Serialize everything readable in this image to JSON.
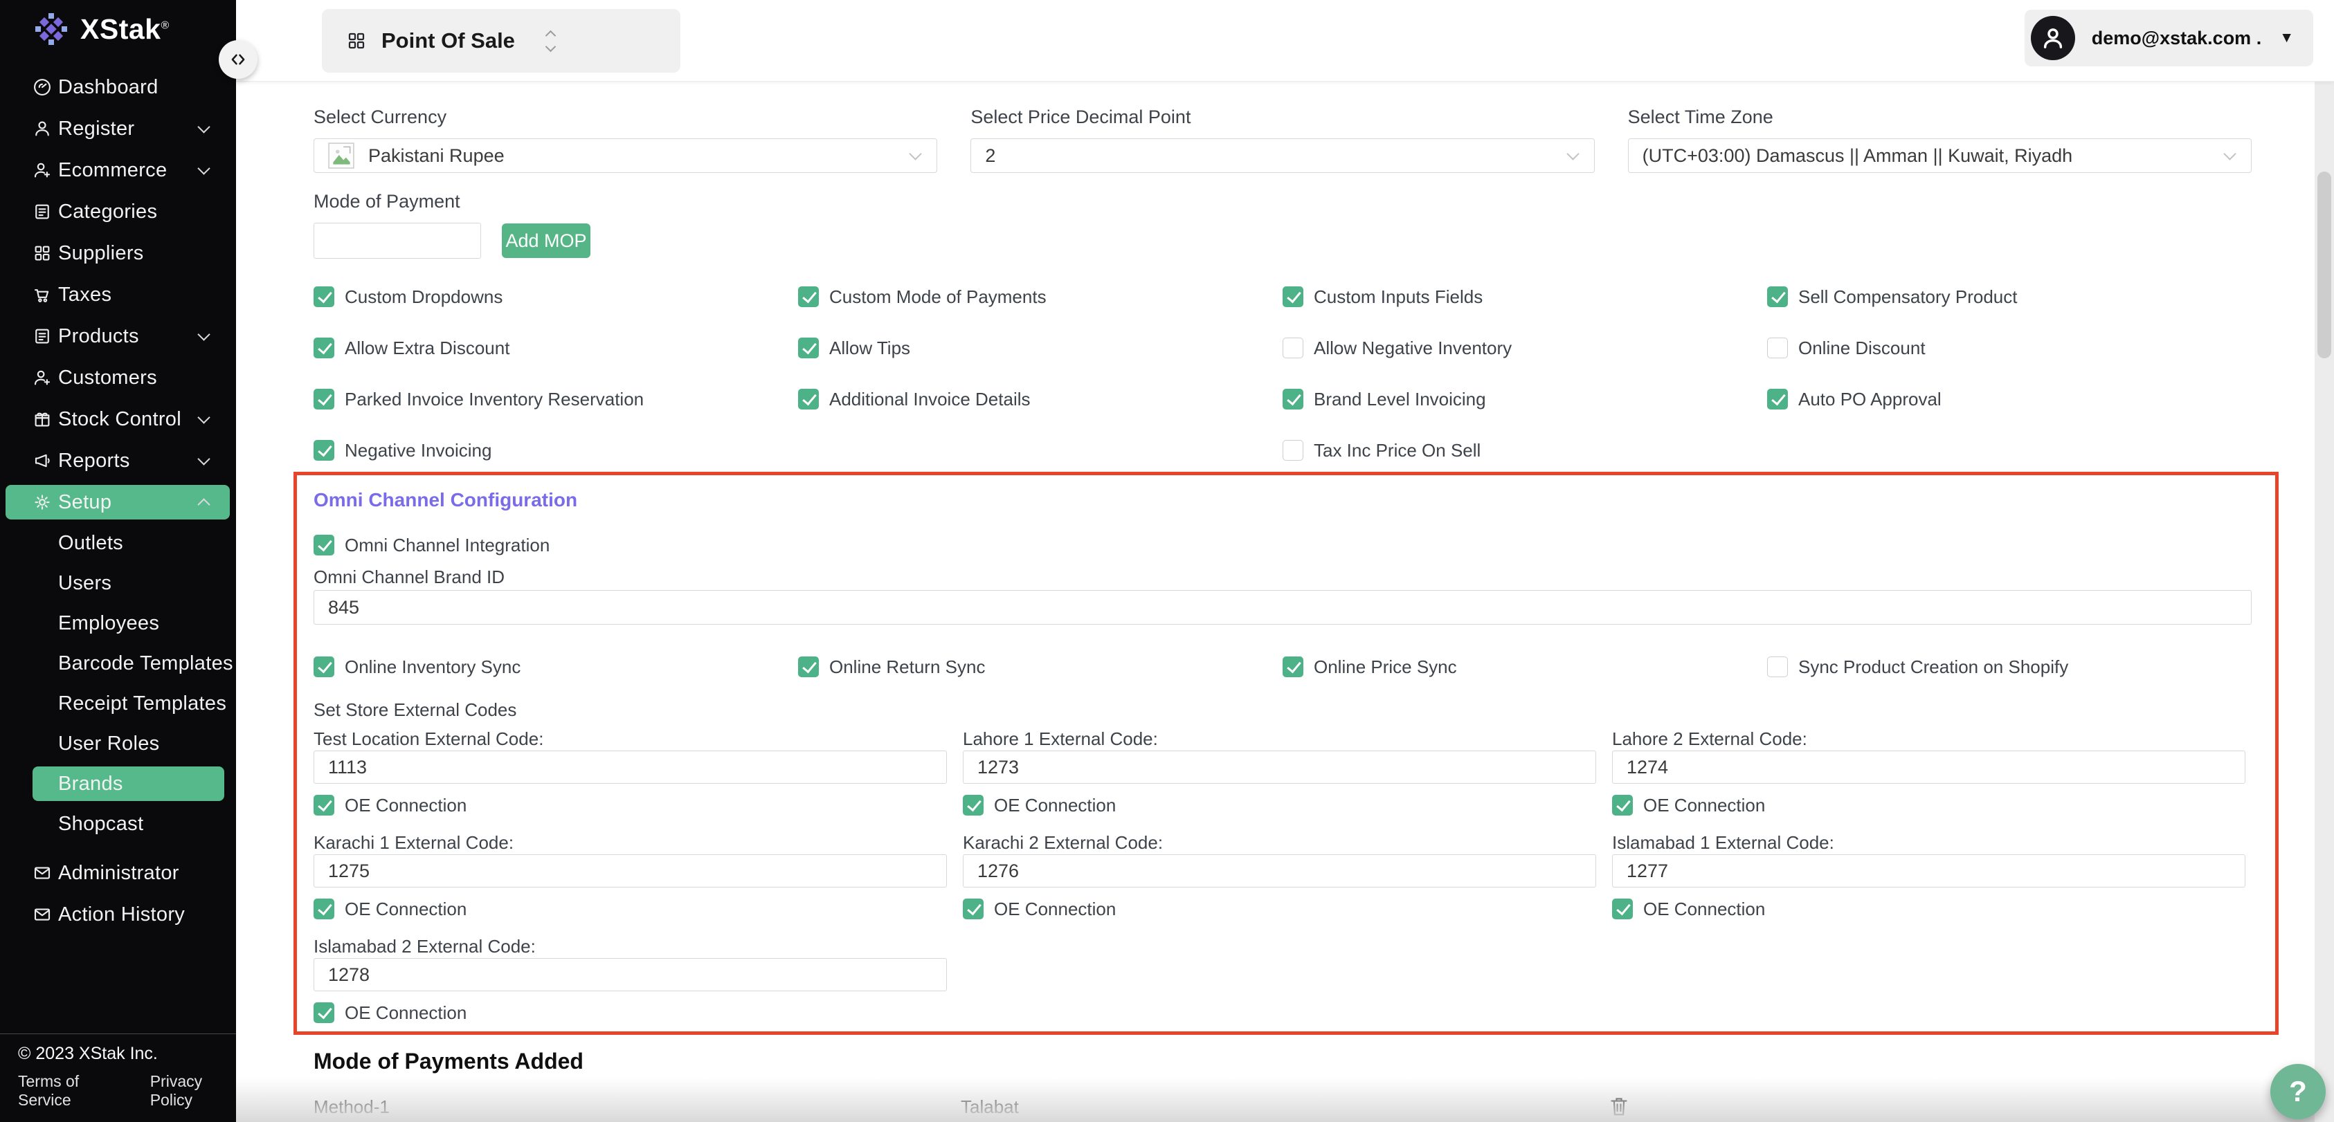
{
  "colors": {
    "accent_green": "#52b389",
    "alert_red": "#e8432b",
    "omni_purple": "#7a6ce8"
  },
  "sidebar": {
    "logo_text": "XStak",
    "logo_mark": "®",
    "items": [
      {
        "label": "Dashboard",
        "icon": "dashboard"
      },
      {
        "label": "Register",
        "icon": "person",
        "chevron": "down"
      },
      {
        "label": "Ecommerce",
        "icon": "person-plus",
        "chevron": "down"
      },
      {
        "label": "Categories",
        "icon": "list"
      },
      {
        "label": "Suppliers",
        "icon": "grid"
      },
      {
        "label": "Taxes",
        "icon": "cart"
      },
      {
        "label": "Products",
        "icon": "list",
        "chevron": "down"
      },
      {
        "label": "Customers",
        "icon": "person-plus"
      },
      {
        "label": "Stock Control",
        "icon": "gift",
        "chevron": "down"
      },
      {
        "label": "Reports",
        "icon": "megaphone",
        "chevron": "down"
      },
      {
        "label": "Setup",
        "icon": "gear",
        "chevron": "up",
        "active": true
      }
    ],
    "setup_children": [
      {
        "label": "Outlets"
      },
      {
        "label": "Users"
      },
      {
        "label": "Employees"
      },
      {
        "label": "Barcode Templates"
      },
      {
        "label": "Receipt Templates"
      },
      {
        "label": "User Roles"
      },
      {
        "label": "Brands",
        "active": true
      },
      {
        "label": "Shopcast"
      }
    ],
    "bottom_items": [
      {
        "label": "Administrator",
        "icon": "envelope"
      },
      {
        "label": "Action History",
        "icon": "envelope"
      }
    ],
    "footer": {
      "copyright": "© 2023 XStak Inc.",
      "links": [
        "Terms of Service",
        "Privacy Policy"
      ]
    }
  },
  "topbar": {
    "product_label": "Point Of Sale",
    "user_email": "demo@xstak.com ."
  },
  "settings": {
    "currency": {
      "label": "Select Currency",
      "value": "Pakistani Rupee"
    },
    "decimal": {
      "label": "Select Price Decimal Point",
      "value": "2"
    },
    "timezone": {
      "label": "Select Time Zone",
      "value": "(UTC+03:00) Damascus || Amman || Kuwait, Riyadh"
    },
    "mop": {
      "label": "Mode of Payment",
      "input_value": "",
      "button": "Add MOP"
    },
    "checkboxes": [
      {
        "label": "Custom Dropdowns",
        "checked": true,
        "col": 1
      },
      {
        "label": "Custom Mode of Payments",
        "checked": true,
        "col": 2
      },
      {
        "label": "Custom Inputs Fields",
        "checked": true,
        "col": 3
      },
      {
        "label": "Sell Compensatory Product",
        "checked": true,
        "col": 4
      },
      {
        "label": "Allow Extra Discount",
        "checked": true,
        "col": 1
      },
      {
        "label": "Allow Tips",
        "checked": true,
        "col": 2
      },
      {
        "label": "Allow Negative Inventory",
        "checked": false,
        "col": 3
      },
      {
        "label": "Online Discount",
        "checked": false,
        "col": 4
      },
      {
        "label": "Parked Invoice Inventory Reservation",
        "checked": true,
        "col": 1
      },
      {
        "label": "Additional Invoice Details",
        "checked": true,
        "col": 2
      },
      {
        "label": "Brand Level Invoicing",
        "checked": true,
        "col": 3
      },
      {
        "label": "Auto PO Approval",
        "checked": true,
        "col": 4
      },
      {
        "label": "Negative Invoicing",
        "checked": true,
        "col": 1
      },
      {
        "label": "Tax Inc Price On Sell",
        "checked": false,
        "col": 3
      }
    ]
  },
  "omni": {
    "title": "Omni Channel Configuration",
    "integration": {
      "label": "Omni Channel Integration",
      "checked": true
    },
    "brand_id": {
      "label": "Omni Channel Brand ID",
      "value": "845"
    },
    "sync_options": [
      {
        "label": "Online Inventory Sync",
        "checked": true,
        "col": 1
      },
      {
        "label": "Online Return Sync",
        "checked": true,
        "col": 2
      },
      {
        "label": "Online Price Sync",
        "checked": true,
        "col": 3
      },
      {
        "label": "Sync Product Creation on Shopify",
        "checked": false,
        "col": 4
      }
    ],
    "store_codes": {
      "title": "Set Store External Codes",
      "stores": [
        {
          "label": "Test Location External Code:",
          "value": "1113",
          "oe": "OE Connection",
          "checked": true
        },
        {
          "label": "Lahore 1 External Code:",
          "value": "1273",
          "oe": "OE Connection",
          "checked": true
        },
        {
          "label": "Lahore 2 External Code:",
          "value": "1274",
          "oe": "OE Connection",
          "checked": true
        },
        {
          "label": "Karachi 1 External Code:",
          "value": "1275",
          "oe": "OE Connection",
          "checked": true
        },
        {
          "label": "Karachi 2 External Code:",
          "value": "1276",
          "oe": "OE Connection",
          "checked": true
        },
        {
          "label": "Islamabad 1 External Code:",
          "value": "1277",
          "oe": "OE Connection",
          "checked": true
        },
        {
          "label": "Islamabad 2 External Code:",
          "value": "1278",
          "oe": "OE Connection",
          "checked": true
        }
      ]
    }
  },
  "payments": {
    "title": "Mode of Payments Added",
    "rows": [
      {
        "name": "Method-1",
        "type": "Talabat"
      }
    ]
  },
  "help": {
    "label": "?"
  }
}
